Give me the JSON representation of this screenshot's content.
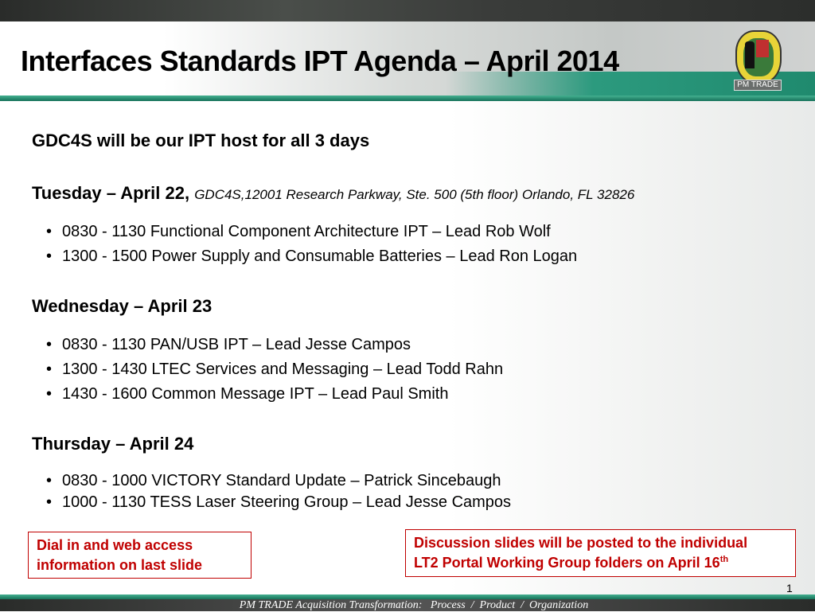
{
  "slide": {
    "title": "Interfaces Standards IPT Agenda – April 2014",
    "logo_text": "PM TRADE",
    "host_line": "GDC4S will be our IPT host for all 3 days",
    "days": [
      {
        "heading": "Tuesday – April 22,",
        "location": "GDC4S,12001 Research Parkway, Ste. 500 (5th floor) Orlando, FL 32826",
        "items": [
          "0830 - 1130 Functional Component Architecture IPT – Lead Rob Wolf",
          "1300 - 1500 Power Supply and Consumable Batteries – Lead Ron Logan"
        ]
      },
      {
        "heading": "Wednesday – April 23",
        "items": [
          "0830 - 1130 PAN/USB IPT – Lead Jesse Campos",
          "1300 - 1430 LTEC Services and Messaging – Lead Todd Rahn",
          "1430 - 1600 Common Message IPT – Lead Paul Smith"
        ]
      },
      {
        "heading": "Thursday – April 24",
        "items": [
          "0830 - 1000 VICTORY Standard Update – Patrick Sincebaugh",
          "1000 - 1130 TESS Laser Steering Group – Lead Jesse Campos"
        ]
      }
    ],
    "bullet": "•",
    "callout_left": [
      "Dial in and web access",
      "information on last slide"
    ],
    "callout_right": [
      "Discussion slides will be posted to the individual",
      "LT2 Portal Working Group folders on April 16"
    ],
    "callout_right_sup": "th",
    "page_number": "1",
    "footer": "PM TRADE Acquisition Transformation:   Process  /  Product  /  Organization"
  },
  "colors": {
    "accent_green": "#1f8a6e",
    "callout_red": "#c00000"
  }
}
